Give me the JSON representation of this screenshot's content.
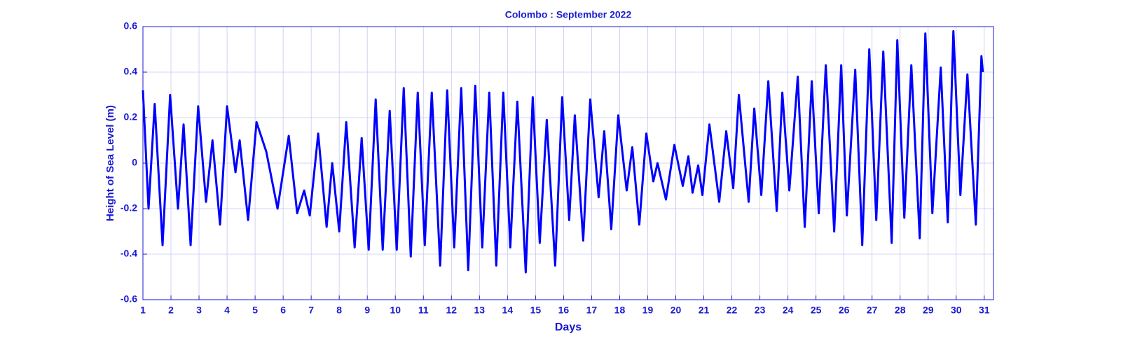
{
  "chart_data": {
    "type": "line",
    "title": "Colombo  : September 2022",
    "xlabel": "Days",
    "ylabel": "Height of Sea Level (m)",
    "x": [
      1.0,
      1.2,
      1.42,
      1.7,
      1.97,
      2.25,
      2.45,
      2.7,
      2.97,
      3.25,
      3.48,
      3.75,
      4.0,
      4.3,
      4.45,
      4.75,
      5.05,
      5.4,
      5.8,
      6.2,
      6.5,
      6.75,
      6.95,
      7.25,
      7.55,
      7.75,
      8.0,
      8.25,
      8.55,
      8.8,
      9.05,
      9.3,
      9.55,
      9.8,
      10.05,
      10.3,
      10.55,
      10.8,
      11.05,
      11.3,
      11.6,
      11.85,
      12.1,
      12.35,
      12.6,
      12.85,
      13.1,
      13.35,
      13.6,
      13.85,
      14.1,
      14.35,
      14.65,
      14.9,
      15.15,
      15.4,
      15.7,
      15.95,
      16.2,
      16.4,
      16.7,
      16.95,
      17.25,
      17.45,
      17.7,
      17.95,
      18.25,
      18.45,
      18.7,
      18.95,
      19.2,
      19.35,
      19.65,
      19.95,
      20.25,
      20.45,
      20.6,
      20.8,
      20.95,
      21.2,
      21.55,
      21.8,
      22.05,
      22.25,
      22.6,
      22.8,
      23.05,
      23.3,
      23.6,
      23.8,
      24.05,
      24.35,
      24.6,
      24.85,
      25.1,
      25.35,
      25.65,
      25.9,
      26.1,
      26.4,
      26.65,
      26.9,
      27.15,
      27.4,
      27.7,
      27.9,
      28.15,
      28.4,
      28.7,
      28.9,
      29.15,
      29.45,
      29.7,
      29.9,
      30.15,
      30.4,
      30.7,
      30.9,
      30.95
    ],
    "series": [
      {
        "name": "Sea level",
        "color": "#0000ff",
        "values": [
          0.32,
          -0.2,
          0.26,
          -0.36,
          0.3,
          -0.2,
          0.17,
          -0.36,
          0.25,
          -0.17,
          0.1,
          -0.27,
          0.25,
          -0.04,
          0.1,
          -0.25,
          0.18,
          0.05,
          -0.2,
          0.12,
          -0.22,
          -0.12,
          -0.23,
          0.13,
          -0.28,
          0.0,
          -0.3,
          0.18,
          -0.37,
          0.11,
          -0.38,
          0.28,
          -0.38,
          0.23,
          -0.38,
          0.33,
          -0.41,
          0.31,
          -0.36,
          0.31,
          -0.45,
          0.32,
          -0.37,
          0.33,
          -0.47,
          0.34,
          -0.37,
          0.31,
          -0.45,
          0.31,
          -0.37,
          0.27,
          -0.48,
          0.29,
          -0.35,
          0.19,
          -0.45,
          0.29,
          -0.25,
          0.21,
          -0.34,
          0.28,
          -0.15,
          0.14,
          -0.29,
          0.21,
          -0.12,
          0.07,
          -0.27,
          0.13,
          -0.08,
          0.0,
          -0.16,
          0.08,
          -0.1,
          0.03,
          -0.13,
          -0.01,
          -0.14,
          0.17,
          -0.17,
          0.14,
          -0.11,
          0.3,
          -0.17,
          0.24,
          -0.14,
          0.36,
          -0.21,
          0.31,
          -0.12,
          0.38,
          -0.28,
          0.36,
          -0.22,
          0.43,
          -0.3,
          0.43,
          -0.23,
          0.41,
          -0.36,
          0.5,
          -0.25,
          0.49,
          -0.35,
          0.54,
          -0.24,
          0.43,
          -0.33,
          0.57,
          -0.22,
          0.42,
          -0.26,
          0.58,
          -0.14,
          0.39,
          -0.27,
          0.47,
          0.4
        ]
      }
    ],
    "xlim": [
      1,
      31.33
    ],
    "xticks": [
      1,
      2,
      3,
      4,
      5,
      6,
      7,
      8,
      9,
      10,
      11,
      12,
      13,
      14,
      15,
      16,
      17,
      18,
      19,
      20,
      21,
      22,
      23,
      24,
      25,
      26,
      27,
      28,
      29,
      30,
      31
    ],
    "ylim": [
      -0.6,
      0.6
    ],
    "yticks": [
      -0.6,
      -0.4,
      -0.2,
      0,
      0.2,
      0.4,
      0.6
    ],
    "grid": true
  }
}
